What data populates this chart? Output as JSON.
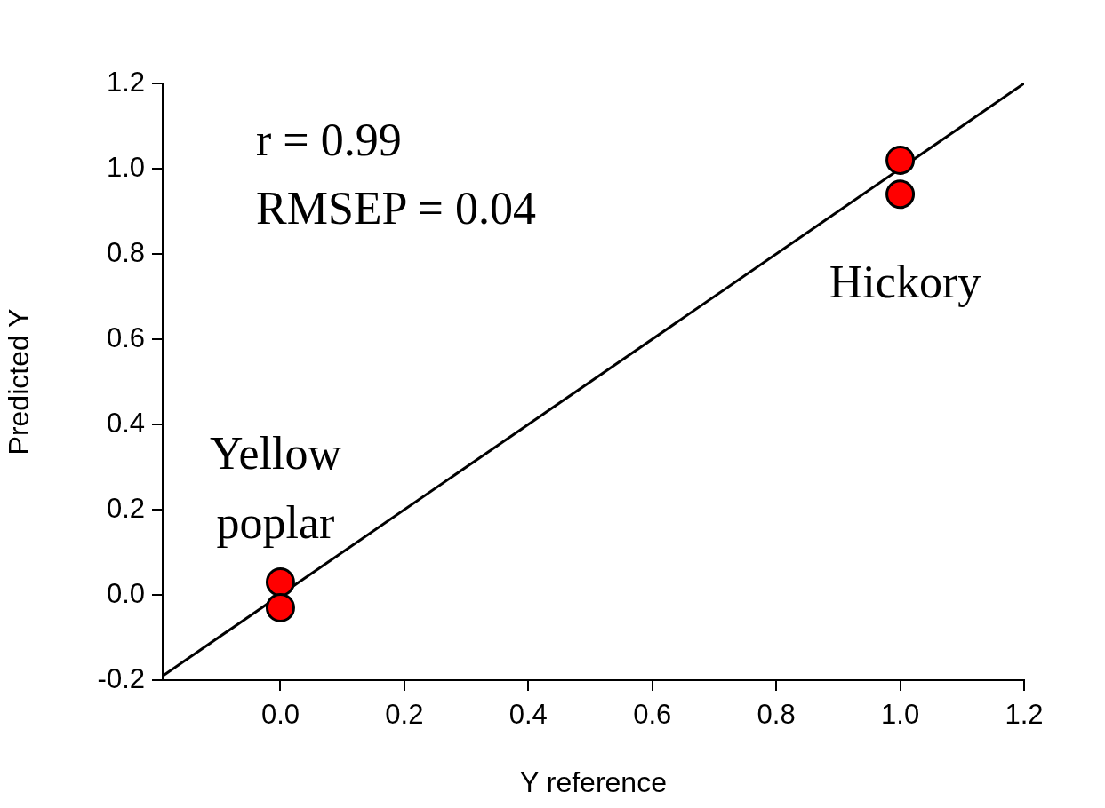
{
  "chart_data": {
    "type": "scatter",
    "xlabel": "Y reference",
    "ylabel": "Predicted Y",
    "xlim": [
      -0.19,
      1.2
    ],
    "ylim": [
      -0.2,
      1.2
    ],
    "xticks": [
      {
        "value": 0,
        "label": "0.0"
      },
      {
        "value": 0.2,
        "label": "0.2"
      },
      {
        "value": 0.4,
        "label": "0.4"
      },
      {
        "value": 0.6,
        "label": "0.6"
      },
      {
        "value": 0.8,
        "label": "0.8"
      },
      {
        "value": 1,
        "label": "1.0"
      },
      {
        "value": 1.2,
        "label": "1.2"
      }
    ],
    "yticks": [
      {
        "value": -0.2,
        "label": "-0.2"
      },
      {
        "value": 0,
        "label": "0.0"
      },
      {
        "value": 0.2,
        "label": "0.2"
      },
      {
        "value": 0.4,
        "label": "0.4"
      },
      {
        "value": 0.6,
        "label": "0.6"
      },
      {
        "value": 0.8,
        "label": "0.8"
      },
      {
        "value": 1,
        "label": "1.0"
      },
      {
        "value": 1.2,
        "label": "1.2"
      }
    ],
    "series": [
      {
        "type": "line",
        "color": "#000000",
        "x": [
          -0.19,
          1.2
        ],
        "values": [
          -0.19,
          1.2
        ],
        "marker": "none"
      },
      {
        "color": "#ff0000",
        "x": [
          1,
          1,
          0,
          0
        ],
        "values": [
          1.02,
          0.94,
          0.03,
          -0.03
        ],
        "marker": "circle"
      }
    ],
    "annotations": [
      "r = 0.99",
      "RMSEP = 0.04",
      "Hickory",
      "Yellow poplar"
    ],
    "grid": false,
    "legend": false
  }
}
